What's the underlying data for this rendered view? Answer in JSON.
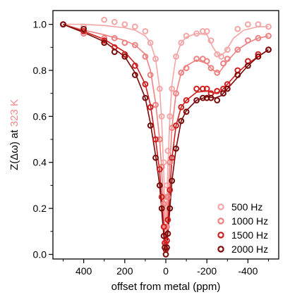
{
  "chart_data": {
    "type": "scatter",
    "xlabel": "offset from metal (ppm)",
    "ylabel_prefix": "Z(Δω) at",
    "ylabel_temp": "323 K",
    "ylabel_temp_color": "#f28a8a",
    "xlim": [
      550,
      -550
    ],
    "ylim": [
      -0.02,
      1.06
    ],
    "x_reversed": true,
    "x_ticks": [
      400,
      200,
      0,
      -200,
      -400
    ],
    "x_tick_labels": [
      "400",
      "200",
      "0",
      "-200",
      "-400"
    ],
    "y_ticks": [
      0.0,
      0.2,
      0.4,
      0.6,
      0.8,
      1.0
    ],
    "y_tick_labels": [
      "0.0",
      "0.2",
      "0.4",
      "0.6",
      "0.8",
      "1.0"
    ],
    "grid": false,
    "legend_position": "bottom-right",
    "series": [
      {
        "name": "500 Hz",
        "color": "#f4a6a6",
        "points": [
          [
            500,
            1.0
          ],
          [
            400,
            0.99
          ],
          [
            300,
            1.02
          ],
          [
            250,
            1.01
          ],
          [
            200,
            1.0
          ],
          [
            150,
            0.99
          ],
          [
            100,
            0.97
          ],
          [
            75,
            0.92
          ],
          [
            50,
            0.85
          ],
          [
            30,
            0.72
          ],
          [
            20,
            0.6
          ],
          [
            10,
            0.4
          ],
          [
            5,
            0.25
          ],
          [
            0,
            0.12
          ],
          [
            -5,
            0.3
          ],
          [
            -10,
            0.45
          ],
          [
            -20,
            0.6
          ],
          [
            -30,
            0.72
          ],
          [
            -50,
            0.86
          ],
          [
            -75,
            0.92
          ],
          [
            -100,
            0.95
          ],
          [
            -150,
            0.96
          ],
          [
            -180,
            0.97
          ],
          [
            -200,
            0.97
          ],
          [
            -220,
            0.93
          ],
          [
            -250,
            0.87
          ],
          [
            -270,
            0.86
          ],
          [
            -300,
            0.89
          ],
          [
            -350,
            0.98
          ],
          [
            -400,
            1.0
          ],
          [
            -450,
            1.0
          ],
          [
            -500,
            0.99
          ]
        ],
        "curve": [
          [
            500,
            1.0
          ],
          [
            400,
            1.0
          ],
          [
            300,
            0.995
          ],
          [
            200,
            0.985
          ],
          [
            150,
            0.975
          ],
          [
            100,
            0.95
          ],
          [
            75,
            0.92
          ],
          [
            50,
            0.85
          ],
          [
            30,
            0.72
          ],
          [
            20,
            0.58
          ],
          [
            10,
            0.35
          ],
          [
            5,
            0.22
          ],
          [
            0,
            0.14
          ],
          [
            -5,
            0.24
          ],
          [
            -10,
            0.38
          ],
          [
            -20,
            0.6
          ],
          [
            -30,
            0.74
          ],
          [
            -50,
            0.86
          ],
          [
            -75,
            0.92
          ],
          [
            -100,
            0.945
          ],
          [
            -150,
            0.96
          ],
          [
            -200,
            0.955
          ],
          [
            -230,
            0.9
          ],
          [
            -260,
            0.86
          ],
          [
            -290,
            0.88
          ],
          [
            -330,
            0.94
          ],
          [
            -380,
            0.975
          ],
          [
            -450,
            0.99
          ],
          [
            -500,
            0.99
          ]
        ]
      },
      {
        "name": "1000 Hz",
        "color": "#ee8080",
        "points": [
          [
            500,
            1.0
          ],
          [
            400,
            0.96
          ],
          [
            300,
            0.94
          ],
          [
            250,
            0.94
          ],
          [
            200,
            0.92
          ],
          [
            150,
            0.91
          ],
          [
            100,
            0.86
          ],
          [
            75,
            0.78
          ],
          [
            50,
            0.65
          ],
          [
            30,
            0.5
          ],
          [
            20,
            0.38
          ],
          [
            10,
            0.22
          ],
          [
            5,
            0.12
          ],
          [
            0,
            0.05
          ],
          [
            -5,
            0.12
          ],
          [
            -10,
            0.25
          ],
          [
            -20,
            0.4
          ],
          [
            -30,
            0.55
          ],
          [
            -50,
            0.7
          ],
          [
            -75,
            0.79
          ],
          [
            -100,
            0.81
          ],
          [
            -150,
            0.85
          ],
          [
            -180,
            0.85
          ],
          [
            -200,
            0.84
          ],
          [
            -220,
            0.81
          ],
          [
            -250,
            0.79
          ],
          [
            -280,
            0.83
          ],
          [
            -300,
            0.85
          ],
          [
            -350,
            0.89
          ],
          [
            -400,
            0.93
          ],
          [
            -450,
            0.94
          ],
          [
            -500,
            0.95
          ]
        ],
        "curve": [
          [
            500,
            1.0
          ],
          [
            400,
            0.975
          ],
          [
            300,
            0.955
          ],
          [
            200,
            0.93
          ],
          [
            150,
            0.91
          ],
          [
            100,
            0.87
          ],
          [
            75,
            0.8
          ],
          [
            50,
            0.66
          ],
          [
            30,
            0.5
          ],
          [
            20,
            0.36
          ],
          [
            10,
            0.2
          ],
          [
            5,
            0.1
          ],
          [
            0,
            0.06
          ],
          [
            -5,
            0.12
          ],
          [
            -10,
            0.22
          ],
          [
            -20,
            0.4
          ],
          [
            -30,
            0.55
          ],
          [
            -50,
            0.7
          ],
          [
            -75,
            0.79
          ],
          [
            -100,
            0.82
          ],
          [
            -150,
            0.845
          ],
          [
            -200,
            0.83
          ],
          [
            -230,
            0.8
          ],
          [
            -260,
            0.79
          ],
          [
            -300,
            0.84
          ],
          [
            -350,
            0.89
          ],
          [
            -400,
            0.92
          ],
          [
            -450,
            0.94
          ],
          [
            -500,
            0.95
          ]
        ]
      },
      {
        "name": "1500 Hz",
        "color": "#d01e1e",
        "points": [
          [
            500,
            1.0
          ],
          [
            400,
            0.97
          ],
          [
            300,
            0.93
          ],
          [
            250,
            0.9
          ],
          [
            200,
            0.87
          ],
          [
            150,
            0.82
          ],
          [
            100,
            0.74
          ],
          [
            75,
            0.64
          ],
          [
            50,
            0.5
          ],
          [
            30,
            0.37
          ],
          [
            20,
            0.25
          ],
          [
            10,
            0.12
          ],
          [
            5,
            0.05
          ],
          [
            0,
            0.02
          ],
          [
            -5,
            0.06
          ],
          [
            -10,
            0.15
          ],
          [
            -20,
            0.28
          ],
          [
            -30,
            0.42
          ],
          [
            -50,
            0.56
          ],
          [
            -75,
            0.64
          ],
          [
            -100,
            0.67
          ],
          [
            -150,
            0.72
          ],
          [
            -180,
            0.72
          ],
          [
            -200,
            0.72
          ],
          [
            -220,
            0.7
          ],
          [
            -250,
            0.71
          ],
          [
            -280,
            0.72
          ],
          [
            -300,
            0.74
          ],
          [
            -350,
            0.8
          ],
          [
            -400,
            0.84
          ],
          [
            -450,
            0.87
          ],
          [
            -500,
            0.89
          ]
        ],
        "curve": [
          [
            500,
            1.0
          ],
          [
            400,
            0.97
          ],
          [
            300,
            0.935
          ],
          [
            200,
            0.88
          ],
          [
            150,
            0.83
          ],
          [
            100,
            0.74
          ],
          [
            75,
            0.65
          ],
          [
            50,
            0.5
          ],
          [
            30,
            0.36
          ],
          [
            20,
            0.24
          ],
          [
            10,
            0.11
          ],
          [
            5,
            0.05
          ],
          [
            0,
            0.03
          ],
          [
            -5,
            0.06
          ],
          [
            -10,
            0.13
          ],
          [
            -20,
            0.28
          ],
          [
            -30,
            0.42
          ],
          [
            -50,
            0.56
          ],
          [
            -75,
            0.64
          ],
          [
            -100,
            0.67
          ],
          [
            -150,
            0.705
          ],
          [
            -200,
            0.71
          ],
          [
            -240,
            0.7
          ],
          [
            -270,
            0.71
          ],
          [
            -300,
            0.74
          ],
          [
            -350,
            0.79
          ],
          [
            -400,
            0.83
          ],
          [
            -450,
            0.86
          ],
          [
            -500,
            0.89
          ]
        ]
      },
      {
        "name": "2000 Hz",
        "color": "#7a0a0a",
        "points": [
          [
            500,
            1.0
          ],
          [
            400,
            0.98
          ],
          [
            300,
            0.92
          ],
          [
            250,
            0.88
          ],
          [
            200,
            0.86
          ],
          [
            150,
            0.78
          ],
          [
            100,
            0.68
          ],
          [
            75,
            0.56
          ],
          [
            50,
            0.42
          ],
          [
            30,
            0.3
          ],
          [
            20,
            0.2
          ],
          [
            10,
            0.08
          ],
          [
            5,
            0.03
          ],
          [
            0,
            0.0
          ],
          [
            -5,
            0.03
          ],
          [
            -10,
            0.09
          ],
          [
            -20,
            0.2
          ],
          [
            -30,
            0.32
          ],
          [
            -50,
            0.46
          ],
          [
            -75,
            0.58
          ],
          [
            -100,
            0.62
          ],
          [
            -150,
            0.67
          ],
          [
            -180,
            0.68
          ],
          [
            -200,
            0.68
          ],
          [
            -220,
            0.68
          ],
          [
            -250,
            0.67
          ],
          [
            -280,
            0.7
          ],
          [
            -300,
            0.72
          ],
          [
            -350,
            0.78
          ],
          [
            -400,
            0.82
          ],
          [
            -450,
            0.86
          ],
          [
            -500,
            0.89
          ]
        ],
        "curve": [
          [
            500,
            1.0
          ],
          [
            400,
            0.965
          ],
          [
            300,
            0.925
          ],
          [
            200,
            0.86
          ],
          [
            150,
            0.79
          ],
          [
            100,
            0.68
          ],
          [
            75,
            0.57
          ],
          [
            50,
            0.43
          ],
          [
            30,
            0.3
          ],
          [
            20,
            0.19
          ],
          [
            10,
            0.08
          ],
          [
            5,
            0.03
          ],
          [
            0,
            0.01
          ],
          [
            -5,
            0.03
          ],
          [
            -10,
            0.09
          ],
          [
            -20,
            0.2
          ],
          [
            -30,
            0.32
          ],
          [
            -50,
            0.46
          ],
          [
            -75,
            0.58
          ],
          [
            -100,
            0.625
          ],
          [
            -150,
            0.67
          ],
          [
            -200,
            0.685
          ],
          [
            -240,
            0.68
          ],
          [
            -270,
            0.69
          ],
          [
            -300,
            0.72
          ],
          [
            -350,
            0.77
          ],
          [
            -400,
            0.82
          ],
          [
            -450,
            0.86
          ],
          [
            -500,
            0.89
          ]
        ]
      }
    ]
  }
}
